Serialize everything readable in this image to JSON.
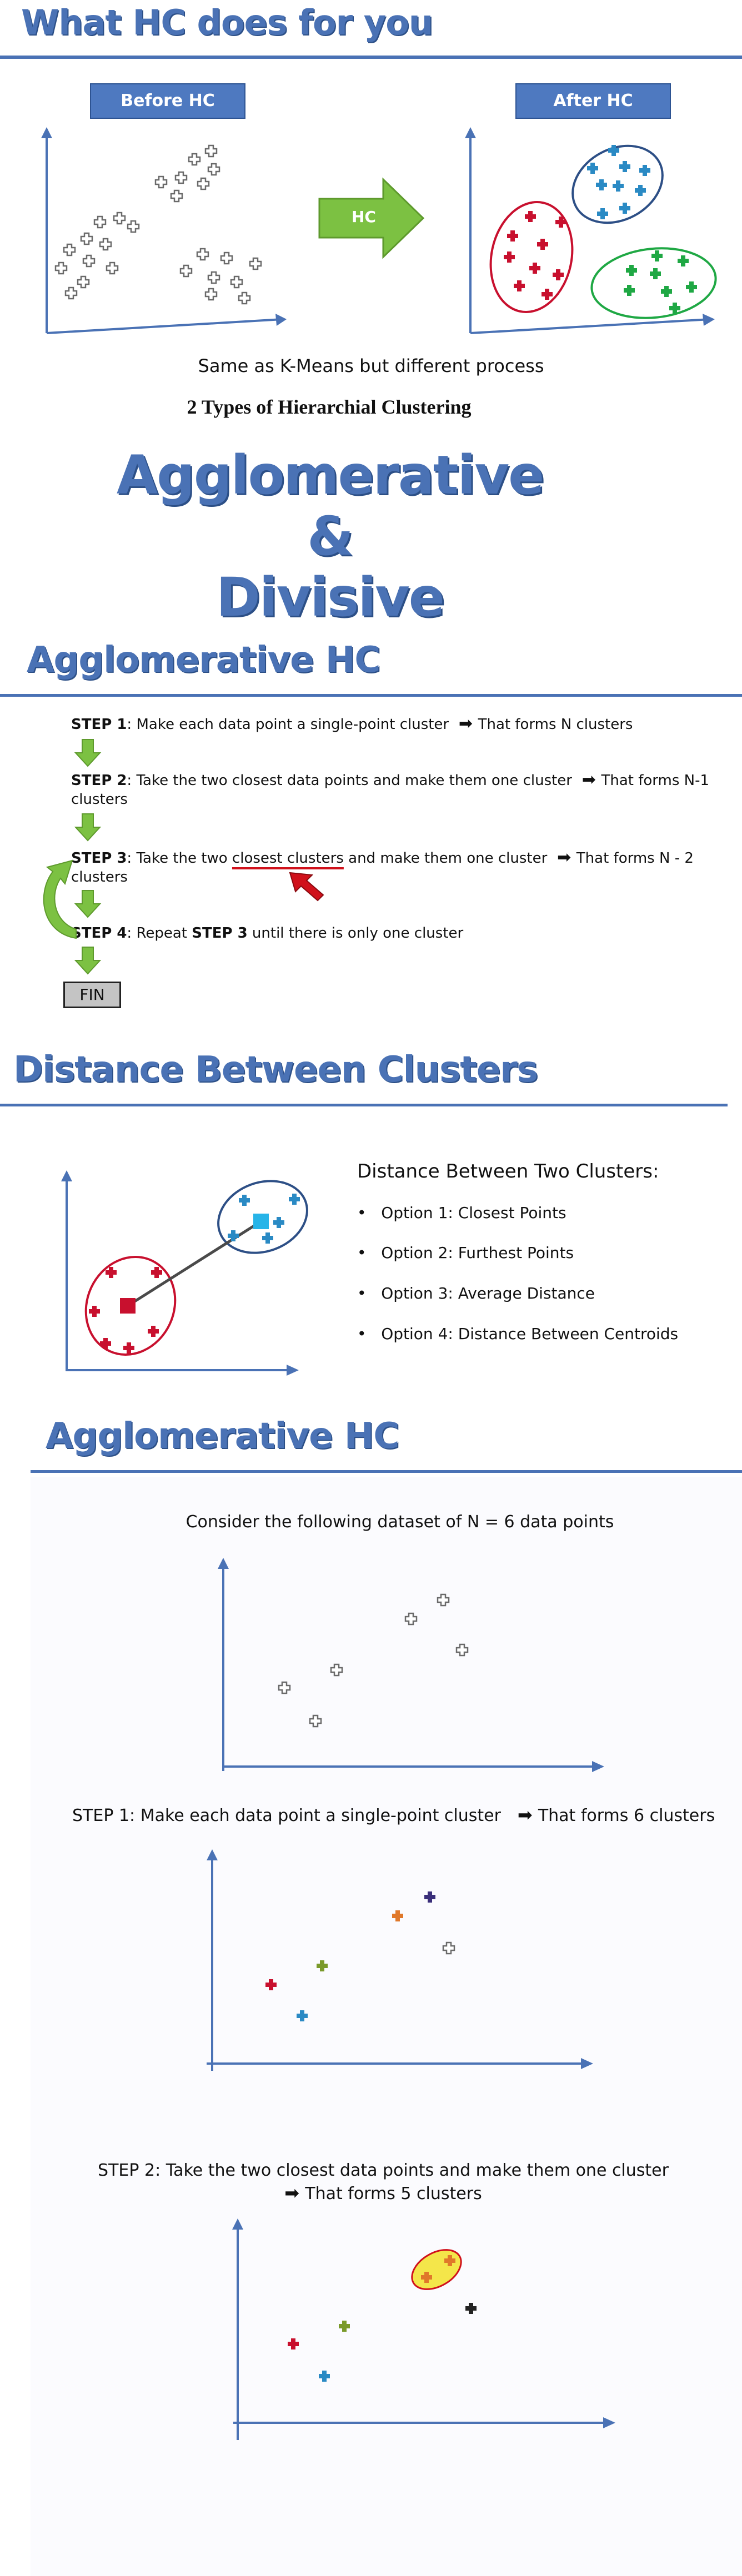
{
  "section1": {
    "title": "What HC does for you",
    "before_label": "Before HC",
    "after_label": "After HC",
    "arrow_label": "HC",
    "caption": "Same as K-Means but different process",
    "subtitle": "2 Types of Hierarchial Clustering",
    "word1": "Agglomerative",
    "word2": "&",
    "word3": "Divisive"
  },
  "section2": {
    "title": "Agglomerative HC",
    "steps": [
      {
        "label": "STEP 1",
        "text": ": Make each data point a single-point cluster",
        "result": "That forms N clusters"
      },
      {
        "label": "STEP 2",
        "text": ": Take the two closest data points and make them one cluster",
        "result": "That forms N-1 clusters"
      },
      {
        "label": "STEP 3",
        "text_before": ": Take the two ",
        "underlined": "closest clusters",
        "text_after": " and make them one cluster",
        "result": "That forms N - 2 clusters"
      },
      {
        "label": "STEP 4",
        "text_before": ": Repeat ",
        "ref": "STEP 3",
        "text_after": " until there is only one cluster"
      }
    ],
    "fin": "FIN"
  },
  "section3": {
    "title": "Distance Between Clusters",
    "heading": "Distance Between Two Clusters:",
    "options": [
      "Option 1: Closest Points",
      "Option 2: Furthest Points",
      "Option 3: Average Distance",
      "Option 4: Distance Between Centroids"
    ]
  },
  "section4": {
    "title": "Agglomerative HC",
    "intro": "Consider the following dataset of N = 6 data points",
    "step1_label": "STEP 1",
    "step1_text": ": Make each data point a single-point cluster",
    "step1_result": "That forms 6 clusters",
    "step2_label": "STEP 2",
    "step2_text": ": Take the two closest data points and make them one cluster",
    "step2_result": "That forms 5 clusters"
  },
  "colors": {
    "accent_blue": "#4a72b5",
    "grey_point": "#8a8a8a",
    "red": "#c8102e",
    "blue": "#2a8ac4",
    "green": "#1fa844",
    "orange": "#e0782a",
    "purple": "#3a2f7a",
    "olive": "#7a9a2a",
    "arrow_green": "#7cc142"
  }
}
